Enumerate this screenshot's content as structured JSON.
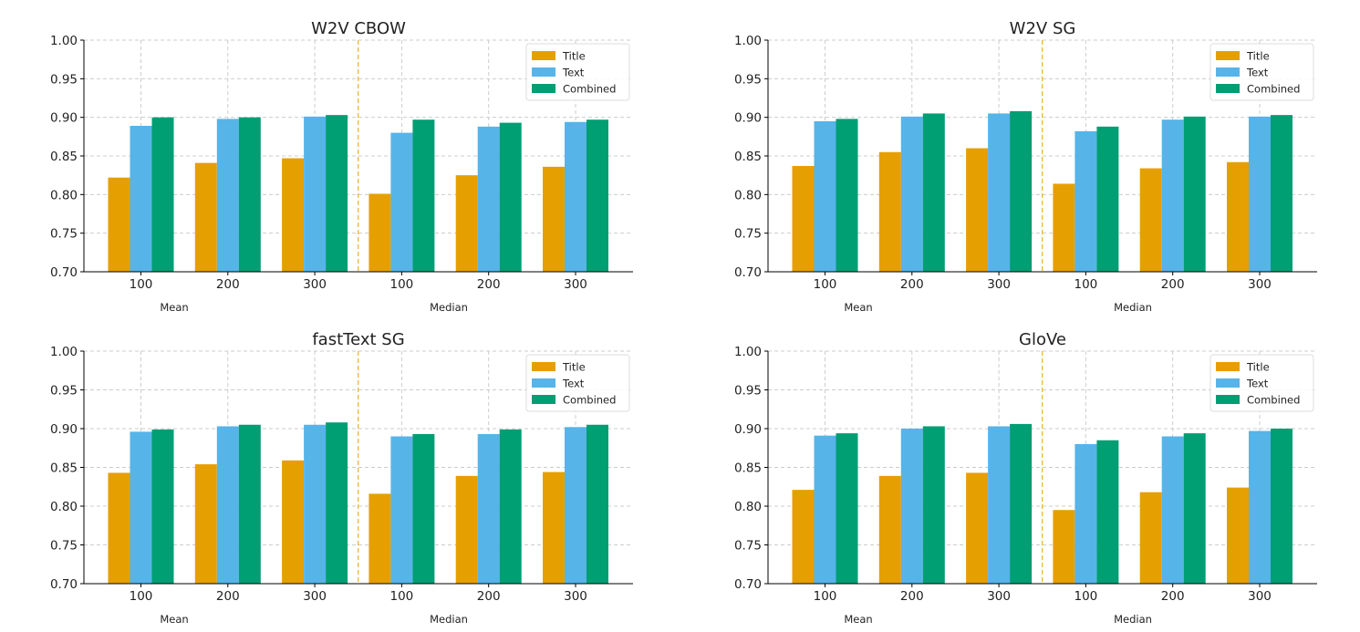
{
  "colors": {
    "Title": "#E69F00",
    "Text": "#56B4E9",
    "Combined": "#009E73",
    "divider": "#E69F00",
    "grid": "#cccccc",
    "axis": "#000000"
  },
  "chart_data": [
    {
      "type": "bar",
      "title": "W2V CBOW",
      "categories": [
        "100",
        "200",
        "300",
        "100",
        "200",
        "300"
      ],
      "groups": [
        "Mean",
        "Median"
      ],
      "ylim": [
        0.7,
        1.0
      ],
      "yticks": [
        "0.70",
        "0.75",
        "0.80",
        "0.85",
        "0.90",
        "0.95",
        "1.00"
      ],
      "grid": true,
      "legend_position": "top-right",
      "series": [
        {
          "name": "Title",
          "values": [
            0.822,
            0.841,
            0.847,
            0.801,
            0.825,
            0.836
          ]
        },
        {
          "name": "Text",
          "values": [
            0.889,
            0.898,
            0.901,
            0.88,
            0.888,
            0.894
          ]
        },
        {
          "name": "Combined",
          "values": [
            0.9,
            0.9,
            0.903,
            0.897,
            0.893,
            0.897
          ]
        }
      ]
    },
    {
      "type": "bar",
      "title": "W2V SG",
      "categories": [
        "100",
        "200",
        "300",
        "100",
        "200",
        "300"
      ],
      "groups": [
        "Mean",
        "Median"
      ],
      "ylim": [
        0.7,
        1.0
      ],
      "yticks": [
        "0.70",
        "0.75",
        "0.80",
        "0.85",
        "0.90",
        "0.95",
        "1.00"
      ],
      "grid": true,
      "legend_position": "top-right",
      "series": [
        {
          "name": "Title",
          "values": [
            0.837,
            0.855,
            0.86,
            0.814,
            0.834,
            0.842
          ]
        },
        {
          "name": "Text",
          "values": [
            0.895,
            0.901,
            0.905,
            0.882,
            0.897,
            0.901
          ]
        },
        {
          "name": "Combined",
          "values": [
            0.898,
            0.905,
            0.908,
            0.888,
            0.901,
            0.903
          ]
        }
      ]
    },
    {
      "type": "bar",
      "title": "fastText SG",
      "categories": [
        "100",
        "200",
        "300",
        "100",
        "200",
        "300"
      ],
      "groups": [
        "Mean",
        "Median"
      ],
      "ylim": [
        0.7,
        1.0
      ],
      "yticks": [
        "0.70",
        "0.75",
        "0.80",
        "0.85",
        "0.90",
        "0.95",
        "1.00"
      ],
      "grid": true,
      "legend_position": "top-right",
      "series": [
        {
          "name": "Title",
          "values": [
            0.843,
            0.854,
            0.859,
            0.816,
            0.839,
            0.844
          ]
        },
        {
          "name": "Text",
          "values": [
            0.896,
            0.903,
            0.905,
            0.89,
            0.893,
            0.902
          ]
        },
        {
          "name": "Combined",
          "values": [
            0.899,
            0.905,
            0.908,
            0.893,
            0.899,
            0.905
          ]
        }
      ]
    },
    {
      "type": "bar",
      "title": "GloVe",
      "categories": [
        "100",
        "200",
        "300",
        "100",
        "200",
        "300"
      ],
      "groups": [
        "Mean",
        "Median"
      ],
      "ylim": [
        0.7,
        1.0
      ],
      "yticks": [
        "0.70",
        "0.75",
        "0.80",
        "0.85",
        "0.90",
        "0.95",
        "1.00"
      ],
      "grid": true,
      "legend_position": "top-right",
      "series": [
        {
          "name": "Title",
          "values": [
            0.821,
            0.839,
            0.843,
            0.795,
            0.818,
            0.824
          ]
        },
        {
          "name": "Text",
          "values": [
            0.891,
            0.9,
            0.903,
            0.88,
            0.89,
            0.897
          ]
        },
        {
          "name": "Combined",
          "values": [
            0.894,
            0.903,
            0.906,
            0.885,
            0.894,
            0.9
          ]
        }
      ]
    }
  ]
}
